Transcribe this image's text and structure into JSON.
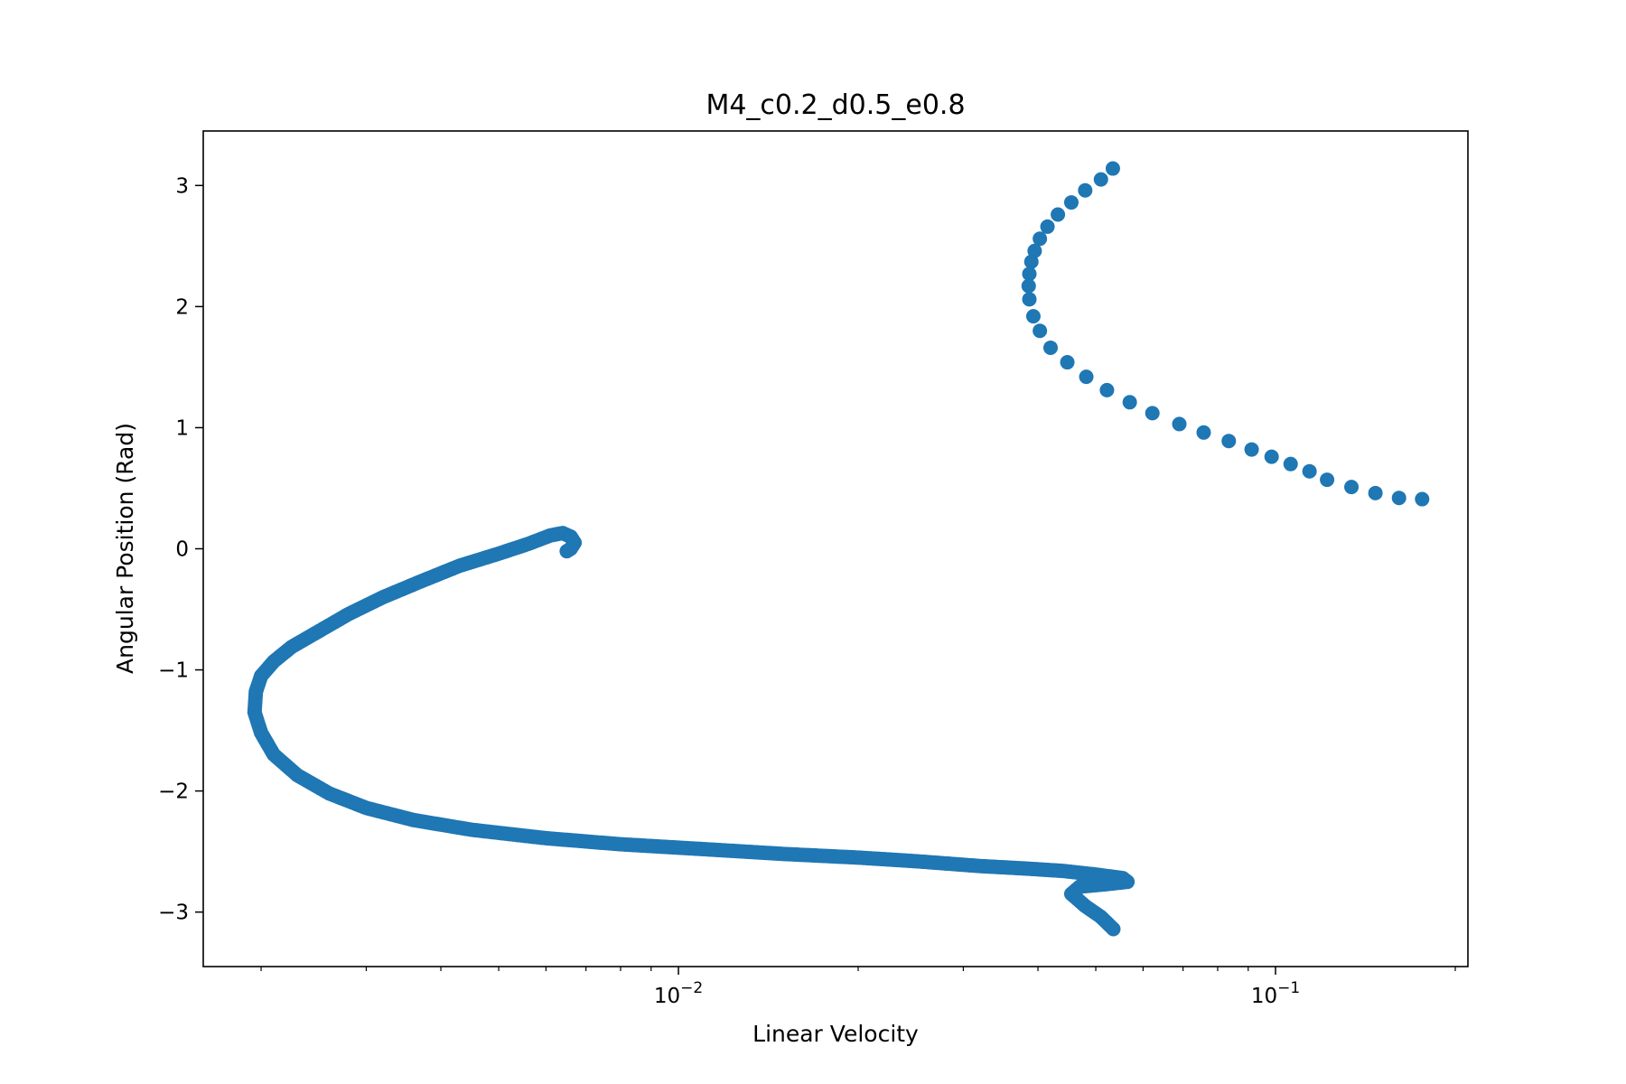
{
  "chart_data": {
    "type": "scatter",
    "title": "M4_c0.2_d0.5_e0.8",
    "xlabel": "Linear Velocity",
    "ylabel": "Angular Position (Rad)",
    "xscale": "log",
    "xlim": [
      0.0016,
      0.21
    ],
    "ylim": [
      -3.45,
      3.45
    ],
    "x_major_ticks": [
      {
        "value": 0.01,
        "base": "10",
        "exp": "−2"
      },
      {
        "value": 0.1,
        "base": "10",
        "exp": "−1"
      }
    ],
    "x_minor_ticks": [
      0.002,
      0.003,
      0.004,
      0.005,
      0.006,
      0.007,
      0.008,
      0.009,
      0.02,
      0.03,
      0.04,
      0.05,
      0.06,
      0.07,
      0.08,
      0.09,
      0.2
    ],
    "y_ticks": [
      {
        "value": -3,
        "label": "−3"
      },
      {
        "value": -2,
        "label": "−2"
      },
      {
        "value": -1,
        "label": "−1"
      },
      {
        "value": 0,
        "label": "0"
      },
      {
        "value": 1,
        "label": "1"
      },
      {
        "value": 2,
        "label": "2"
      },
      {
        "value": 3,
        "label": "3"
      }
    ],
    "grid": false,
    "marker_color": "#1f77b4",
    "series": [
      {
        "dense": false,
        "points": [
          [
            0.0534,
            3.14
          ],
          [
            0.051,
            3.05
          ],
          [
            0.048,
            2.96
          ],
          [
            0.0455,
            2.86
          ],
          [
            0.0432,
            2.76
          ],
          [
            0.0415,
            2.66
          ],
          [
            0.0403,
            2.56
          ],
          [
            0.0395,
            2.46
          ],
          [
            0.039,
            2.37
          ],
          [
            0.0387,
            2.27
          ],
          [
            0.0386,
            2.17
          ],
          [
            0.0387,
            2.06
          ],
          [
            0.0393,
            1.92
          ],
          [
            0.0403,
            1.8
          ],
          [
            0.042,
            1.66
          ],
          [
            0.0448,
            1.54
          ],
          [
            0.0482,
            1.42
          ],
          [
            0.0522,
            1.31
          ],
          [
            0.057,
            1.21
          ],
          [
            0.0622,
            1.12
          ],
          [
            0.069,
            1.03
          ],
          [
            0.0758,
            0.96
          ],
          [
            0.0835,
            0.89
          ],
          [
            0.0912,
            0.82
          ],
          [
            0.0985,
            0.76
          ],
          [
            0.106,
            0.7
          ],
          [
            0.114,
            0.64
          ],
          [
            0.122,
            0.57
          ],
          [
            0.134,
            0.51
          ],
          [
            0.147,
            0.46
          ],
          [
            0.161,
            0.42
          ],
          [
            0.176,
            0.41
          ]
        ]
      },
      {
        "dense": true,
        "points": [
          [
            0.0535,
            -3.14
          ],
          [
            0.051,
            -3.04
          ],
          [
            0.048,
            -2.95
          ],
          [
            0.0455,
            -2.85
          ],
          [
            0.047,
            -2.79
          ],
          [
            0.052,
            -2.77
          ],
          [
            0.0565,
            -2.75
          ],
          [
            0.0555,
            -2.72
          ],
          [
            0.05,
            -2.69
          ],
          [
            0.044,
            -2.66
          ],
          [
            0.038,
            -2.64
          ],
          [
            0.032,
            -2.62
          ],
          [
            0.025,
            -2.58
          ],
          [
            0.02,
            -2.55
          ],
          [
            0.015,
            -2.52
          ],
          [
            0.011,
            -2.48
          ],
          [
            0.008,
            -2.44
          ],
          [
            0.006,
            -2.39
          ],
          [
            0.0045,
            -2.32
          ],
          [
            0.0036,
            -2.24
          ],
          [
            0.003,
            -2.14
          ],
          [
            0.0026,
            -2.02
          ],
          [
            0.0023,
            -1.87
          ],
          [
            0.0021,
            -1.7
          ],
          [
            0.002,
            -1.52
          ],
          [
            0.00195,
            -1.35
          ],
          [
            0.00196,
            -1.18
          ],
          [
            0.002,
            -1.05
          ],
          [
            0.0021,
            -0.93
          ],
          [
            0.00225,
            -0.81
          ],
          [
            0.0025,
            -0.68
          ],
          [
            0.0028,
            -0.54
          ],
          [
            0.0032,
            -0.4
          ],
          [
            0.0037,
            -0.27
          ],
          [
            0.0043,
            -0.14
          ],
          [
            0.005,
            -0.04
          ],
          [
            0.0056,
            0.04
          ],
          [
            0.0061,
            0.11
          ],
          [
            0.0064,
            0.13
          ],
          [
            0.0066,
            0.1
          ],
          [
            0.0067,
            0.05
          ],
          [
            0.0066,
            0.0
          ],
          [
            0.0065,
            -0.02
          ]
        ]
      }
    ]
  }
}
